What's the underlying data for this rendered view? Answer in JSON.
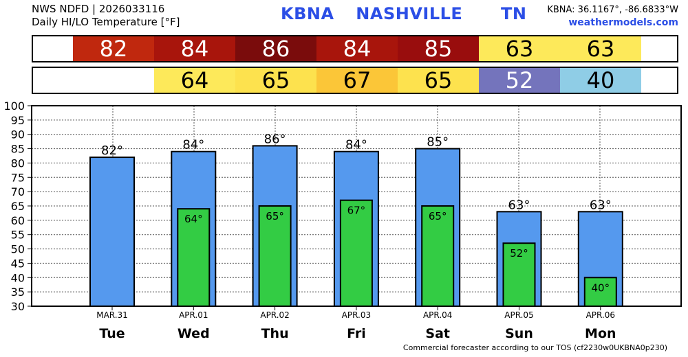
{
  "header": {
    "source_line": "NWS NDFD | 2026033116",
    "subtitle": "Daily HI/LO Temperature [°F]",
    "station_id": "KBNA",
    "station_name": "NASHVILLE",
    "state": "TN",
    "coords": "KBNA: 36.1167°, -86.6833°W",
    "site": "weathermodels.com"
  },
  "high_strip": [
    {
      "text": "82",
      "bg": "#c0280e",
      "fg": "#ffffff"
    },
    {
      "text": "84",
      "bg": "#a8150c",
      "fg": "#ffffff"
    },
    {
      "text": "86",
      "bg": "#7a0c0c",
      "fg": "#ffffff"
    },
    {
      "text": "84",
      "bg": "#a8150c",
      "fg": "#ffffff"
    },
    {
      "text": "85",
      "bg": "#990d0d",
      "fg": "#ffffff"
    },
    {
      "text": "63",
      "bg": "#fde95a",
      "fg": "#000000"
    },
    {
      "text": "63",
      "bg": "#fde95a",
      "fg": "#000000"
    }
  ],
  "low_strip": [
    {
      "text": "",
      "bg": "#ffffff",
      "fg": "#000000"
    },
    {
      "text": "64",
      "bg": "#fde95a",
      "fg": "#000000"
    },
    {
      "text": "65",
      "bg": "#fde24e",
      "fg": "#000000"
    },
    {
      "text": "67",
      "bg": "#fbc638",
      "fg": "#000000"
    },
    {
      "text": "65",
      "bg": "#fde24e",
      "fg": "#000000"
    },
    {
      "text": "52",
      "bg": "#7474bc",
      "fg": "#ffffff"
    },
    {
      "text": "40",
      "bg": "#8fcde6",
      "fg": "#000000"
    }
  ],
  "chart_data": {
    "type": "bar",
    "categories": [
      "Tue",
      "Wed",
      "Thu",
      "Fri",
      "Sat",
      "Sun",
      "Mon"
    ],
    "dates": [
      "MAR.31",
      "APR.01",
      "APR.02",
      "APR.03",
      "APR.04",
      "APR.05",
      "APR.06"
    ],
    "series": [
      {
        "values": [
          82,
          84,
          86,
          84,
          85,
          63,
          63
        ],
        "labels": [
          "82°",
          "84°",
          "86°",
          "84°",
          "85°",
          "63°",
          "63°"
        ],
        "color": "#5599ee"
      },
      {
        "values": [
          null,
          64,
          65,
          67,
          65,
          52,
          40
        ],
        "labels": [
          "",
          "64°",
          "65°",
          "67°",
          "65°",
          "52°",
          "40°"
        ],
        "color": "#33cc44"
      }
    ],
    "ylim": [
      30,
      100
    ],
    "yticks": [
      30,
      35,
      40,
      45,
      50,
      55,
      60,
      65,
      70,
      75,
      80,
      85,
      90,
      95,
      100
    ],
    "grid": true
  },
  "footer": "Commercial forecaster according to our TOS (cf2230w0UKBNA0p230)"
}
